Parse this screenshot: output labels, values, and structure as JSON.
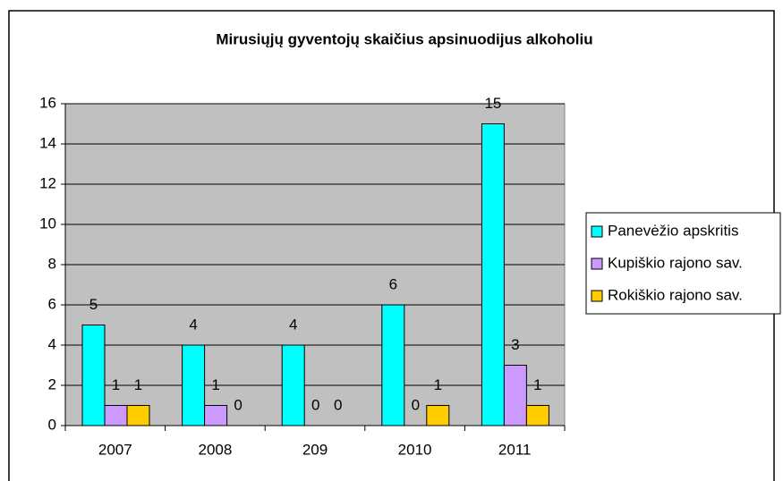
{
  "chart_data": {
    "type": "bar",
    "title": "Mirusiųjų gyventojų skaičius apsinuodijus alkoholiu",
    "categories": [
      "2007",
      "2008",
      "209",
      "2010",
      "2011"
    ],
    "series": [
      {
        "name": "Panevėžio apskritis",
        "color": "#00ffff",
        "values": [
          5,
          4,
          4,
          6,
          15
        ]
      },
      {
        "name": "Kupiškio rajono sav.",
        "color": "#cc99ff",
        "values": [
          1,
          1,
          0,
          0,
          3
        ]
      },
      {
        "name": "Rokiškio rajono sav.",
        "color": "#ffcc00",
        "values": [
          1,
          0,
          0,
          1,
          1
        ]
      }
    ],
    "ylim": [
      0,
      16
    ],
    "yticks": [
      0,
      2,
      4,
      6,
      8,
      10,
      12,
      14,
      16
    ],
    "grid": true,
    "plot_background": "#c0c0c0",
    "legend": "right"
  }
}
